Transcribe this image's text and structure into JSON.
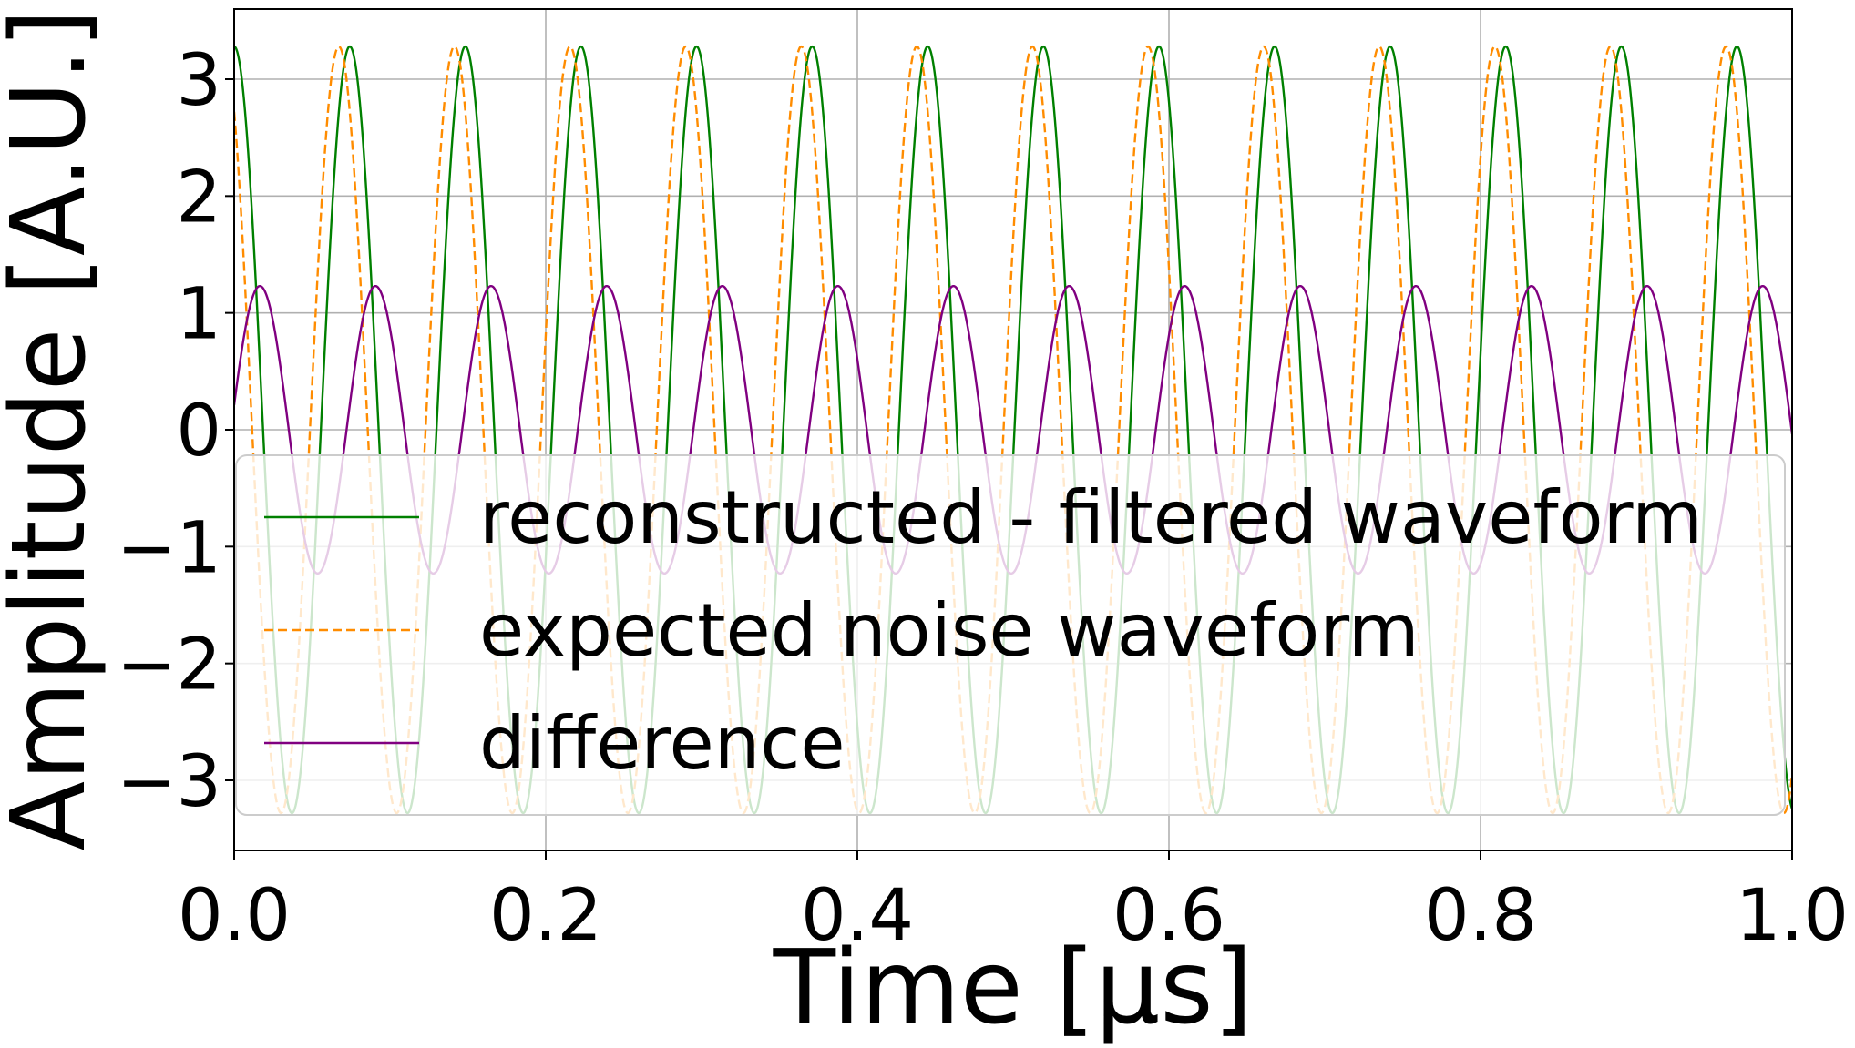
{
  "chart_data": {
    "type": "line",
    "xlabel": "Time [μs]",
    "ylabel": "Amplitude [A.U.]",
    "xlim": [
      0.0,
      1.0
    ],
    "ylim": [
      -3.6,
      3.6
    ],
    "xticks": [
      "0.0",
      "0.2",
      "0.4",
      "0.6",
      "0.8",
      "1.0"
    ],
    "yticks": [
      "3",
      "2",
      "1",
      "0",
      "−1",
      "−2",
      "−3"
    ],
    "grid": true,
    "legend_position": "lower-center",
    "series": [
      {
        "name": "reconstructed - filtered waveform",
        "color": "#008000",
        "style": "solid",
        "waveform": "sine",
        "amplitude": 3.28,
        "period_us": 0.0742,
        "peak_at_us": 0.0
      },
      {
        "name": "expected noise waveform",
        "color": "#ff8c00",
        "style": "dashed",
        "waveform": "sine",
        "amplitude": 3.28,
        "period_us": 0.0742,
        "peak_at_us": 0.0672
      },
      {
        "name": "difference",
        "color": "#800080",
        "style": "solid",
        "waveform": "sine",
        "amplitude": 1.23,
        "period_us": 0.0742,
        "peak_at_us": 0.0165
      }
    ]
  }
}
